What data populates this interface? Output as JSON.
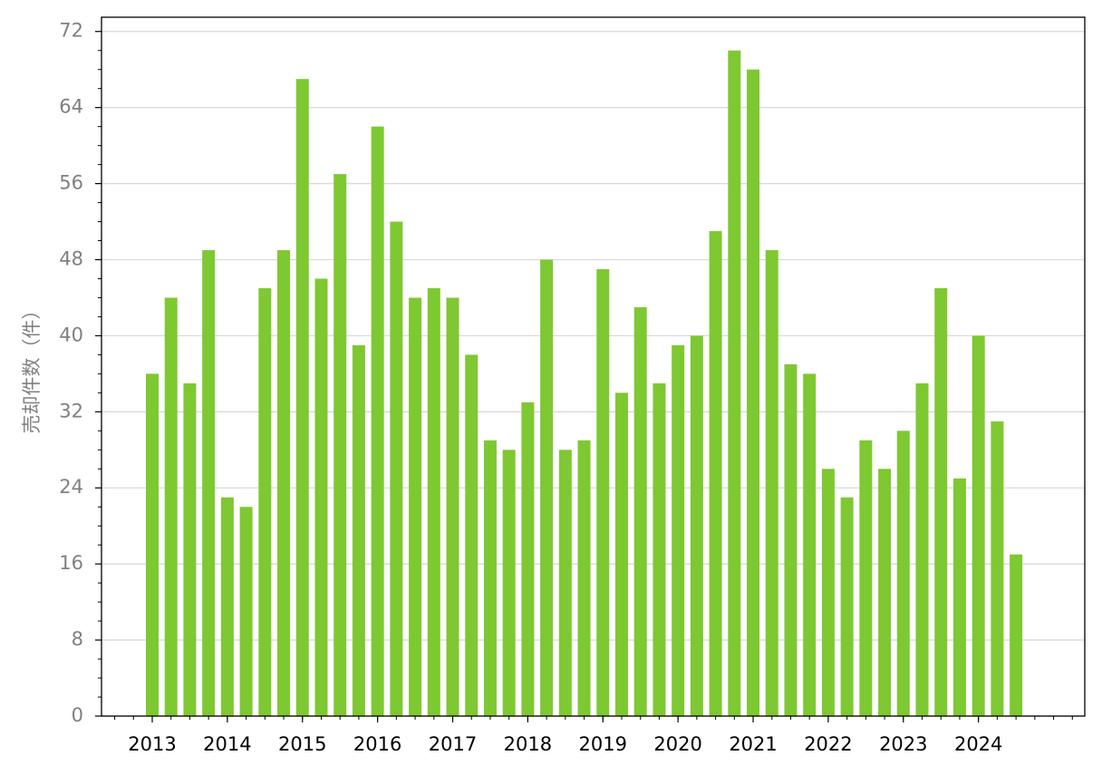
{
  "chart_data": {
    "type": "bar",
    "y_label": "売却件数（件）",
    "categories": [
      "2013",
      null,
      null,
      null,
      "2014",
      null,
      null,
      null,
      "2015",
      null,
      null,
      null,
      "2016",
      null,
      null,
      null,
      "2017",
      null,
      null,
      null,
      "2018",
      null,
      null,
      null,
      "2019",
      null,
      null,
      null,
      "2020",
      null,
      null,
      null,
      "2021",
      null,
      null,
      null,
      "2022",
      null,
      null,
      null,
      "2023",
      null,
      null,
      null,
      "2024",
      null,
      null
    ],
    "values": [
      36,
      44,
      35,
      49,
      23,
      22,
      45,
      49,
      67,
      46,
      57,
      39,
      62,
      52,
      44,
      45,
      44,
      38,
      29,
      28,
      33,
      48,
      28,
      29,
      47,
      34,
      43,
      35,
      39,
      40,
      51,
      70,
      68,
      49,
      37,
      36,
      26,
      23,
      29,
      26,
      30,
      35,
      45,
      25,
      40,
      31,
      17
    ],
    "color": "#7ec832",
    "ylim": [
      0,
      73.5
    ],
    "yticks": [
      0,
      8,
      16,
      24,
      32,
      40,
      48,
      56,
      64,
      72
    ],
    "grid": true
  }
}
